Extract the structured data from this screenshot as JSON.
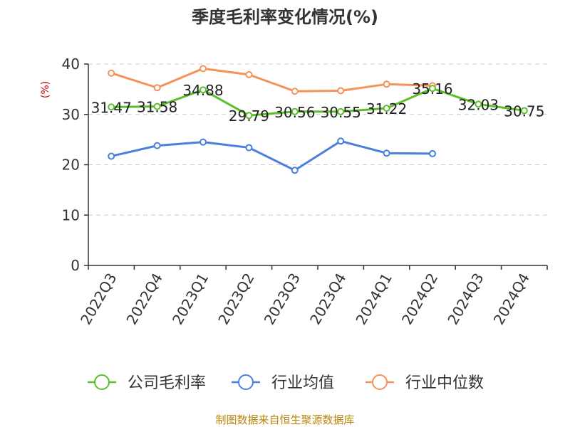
{
  "chart_data": {
    "type": "line",
    "title": "季度毛利率变化情况(%)",
    "ylabel": "(%)",
    "xlabel": "",
    "categories": [
      "2022Q3",
      "2022Q4",
      "2023Q1",
      "2023Q2",
      "2023Q3",
      "2023Q4",
      "2024Q1",
      "2024Q2",
      "2024Q3",
      "2024Q4"
    ],
    "ylim": [
      0,
      40
    ],
    "yticks": [
      0,
      10,
      20,
      30,
      40
    ],
    "grid": true,
    "legend_position": "bottom",
    "series": [
      {
        "name": "公司毛利率",
        "color": "#5cbf2a",
        "values": [
          31.47,
          31.58,
          34.88,
          29.79,
          30.56,
          30.55,
          31.22,
          35.16,
          32.03,
          30.75
        ],
        "labels": [
          "31.47",
          "31.58",
          "34.88",
          "29.79",
          "30.56",
          "30.55",
          "31.22",
          "35.16",
          "32.03",
          "30.75"
        ]
      },
      {
        "name": "行业均值",
        "color": "#4a7fdc",
        "values": [
          21.7,
          23.8,
          24.5,
          23.4,
          18.9,
          24.7,
          22.3,
          22.2,
          null,
          null
        ]
      },
      {
        "name": "行业中位数",
        "color": "#f4925a",
        "values": [
          38.2,
          35.3,
          39.1,
          37.9,
          34.6,
          34.7,
          36.0,
          35.7,
          null,
          null
        ]
      }
    ]
  },
  "source": "制图数据来自恒生聚源数据库"
}
